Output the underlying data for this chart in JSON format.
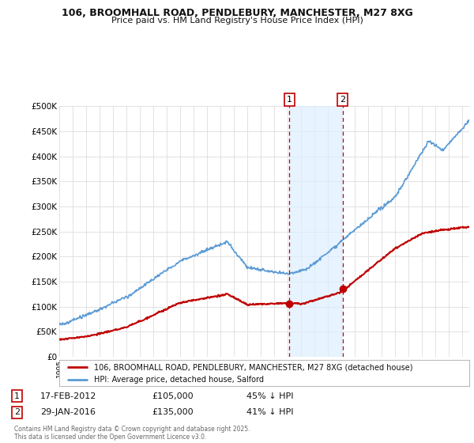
{
  "title1": "106, BROOMHALL ROAD, PENDLEBURY, MANCHESTER, M27 8XG",
  "title2": "Price paid vs. HM Land Registry's House Price Index (HPI)",
  "ylim": [
    0,
    500000
  ],
  "yticks": [
    0,
    50000,
    100000,
    150000,
    200000,
    250000,
    300000,
    350000,
    400000,
    450000,
    500000
  ],
  "ytick_labels": [
    "£0",
    "£50K",
    "£100K",
    "£150K",
    "£200K",
    "£250K",
    "£300K",
    "£350K",
    "£400K",
    "£450K",
    "£500K"
  ],
  "hpi_color": "#5b9bd5",
  "price_color": "#c00000",
  "shade_color": "#ddeeff",
  "sale1_date": 2012.12,
  "sale1_price": 105000,
  "sale2_date": 2016.08,
  "sale2_price": 135000,
  "legend_line1": "106, BROOMHALL ROAD, PENDLEBURY, MANCHESTER, M27 8XG (detached house)",
  "legend_line2": "HPI: Average price, detached house, Salford",
  "footer": "Contains HM Land Registry data © Crown copyright and database right 2025.\nThis data is licensed under the Open Government Licence v3.0.",
  "bg_color": "#ffffff",
  "grid_color": "#dddddd",
  "xmin": 1995,
  "xmax": 2025.5
}
